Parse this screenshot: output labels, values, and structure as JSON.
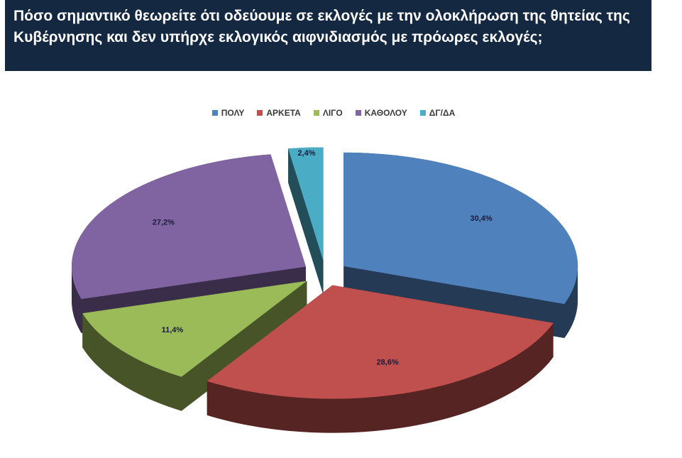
{
  "chart_data": {
    "type": "pie",
    "title": "Πόσο σημαντικό θεωρείτε ότι οδεύουμε σε εκλογές με την ολοκλήρωση της θητείας της Κυβέρνησης και δεν υπήρχε εκλογικός αιφνιδιασμός με πρόωρες εκλογές;",
    "categories": [
      "ΠΟΛΥ",
      "ΑΡΚΕΤΑ",
      "ΛΙΓΟ",
      "ΚΑΘΟΛΟΥ",
      "ΔΓ/ΔΑ"
    ],
    "values": [
      30.4,
      28.6,
      11.4,
      27.2,
      2.4
    ],
    "value_labels": [
      "30,4%",
      "28,6%",
      "11,4%",
      "27,2%",
      "2,4%"
    ],
    "colors": [
      "#4f81bd",
      "#c0504d",
      "#9bbb59",
      "#8064a2",
      "#4bacc6"
    ],
    "legend": "top"
  }
}
